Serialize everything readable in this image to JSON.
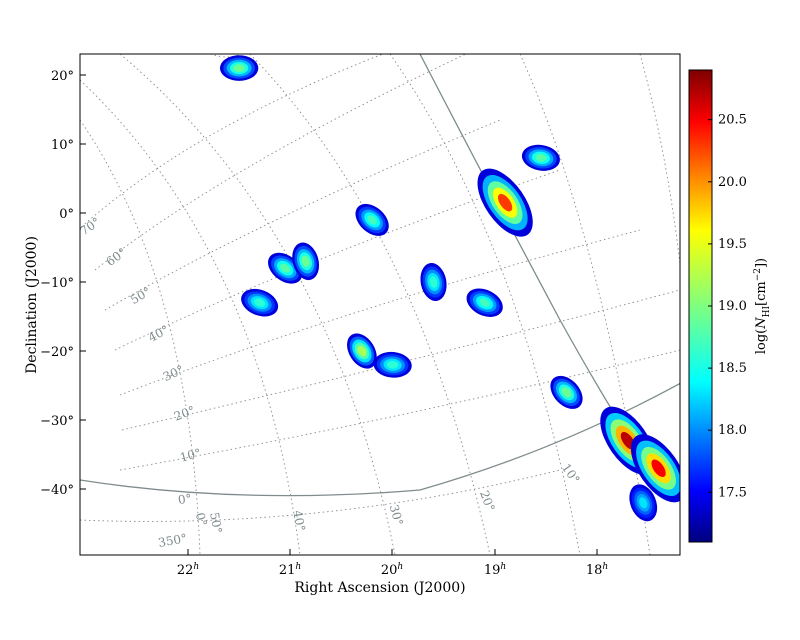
{
  "chart_data": {
    "type": "heatmap",
    "title": "",
    "xlabel": "Right Ascension (J2000)",
    "ylabel": "Declination (J2000)",
    "x_ticks": [
      {
        "hours": "22",
        "unit": "h"
      },
      {
        "hours": "21",
        "unit": "h"
      },
      {
        "hours": "20",
        "unit": "h"
      },
      {
        "hours": "19",
        "unit": "h"
      },
      {
        "hours": "18",
        "unit": "h"
      }
    ],
    "y_ticks": [
      "20°",
      "10°",
      "0°",
      "−10°",
      "−20°",
      "−30°",
      "−40°"
    ],
    "grid": true,
    "grid_style": "dotted",
    "galactic_latitude_labels": [
      "70°",
      "60°",
      "50°",
      "40°",
      "30°",
      "20°",
      "10°",
      "0°"
    ],
    "galactic_longitude_labels": [
      "350°",
      "0°",
      "10°",
      "20°",
      "30°",
      "40°",
      "50°"
    ],
    "colorbar": {
      "label": "log(N_HI[cm^-2])",
      "label_prefix": "log(",
      "label_N": "N",
      "label_sub": "HI",
      "label_unit": "[cm",
      "label_exp": "−2",
      "label_close": "])",
      "range": [
        17.1,
        20.9
      ],
      "ticks": [
        "20.5",
        "20.0",
        "19.5",
        "19.0",
        "18.5",
        "18.0",
        "17.5"
      ],
      "tick_values": [
        20.5,
        20.0,
        19.5,
        19.0,
        18.5,
        18.0,
        17.5
      ],
      "colormap": "jet",
      "colors": [
        "#00007f",
        "#0000ff",
        "#007fff",
        "#00ffff",
        "#7fff7f",
        "#ffff00",
        "#ff7f00",
        "#ff0000",
        "#7f0000"
      ]
    },
    "clouds": [
      {
        "ra": 21.5,
        "dec": 21,
        "logN": 18.9
      },
      {
        "ra": 21.05,
        "dec": -8,
        "logN": 18.8
      },
      {
        "ra": 20.85,
        "dec": -7,
        "logN": 18.9
      },
      {
        "ra": 21.3,
        "dec": -13,
        "logN": 18.6
      },
      {
        "ra": 20.3,
        "dec": -20,
        "logN": 19.2
      },
      {
        "ra": 20.0,
        "dec": -22,
        "logN": 18.6
      },
      {
        "ra": 20.2,
        "dec": -1,
        "logN": 18.7
      },
      {
        "ra": 19.6,
        "dec": -10,
        "logN": 18.6
      },
      {
        "ra": 19.1,
        "dec": -13,
        "logN": 18.7
      },
      {
        "ra": 18.9,
        "dec": 1.5,
        "logN": 20.3
      },
      {
        "ra": 18.55,
        "dec": 8,
        "logN": 18.8
      },
      {
        "ra": 18.3,
        "dec": -26,
        "logN": 18.9
      },
      {
        "ra": 17.7,
        "dec": -33,
        "logN": 20.7
      },
      {
        "ra": 17.4,
        "dec": -37,
        "logN": 20.5
      },
      {
        "ra": 17.55,
        "dec": -42,
        "logN": 18.3
      }
    ]
  }
}
